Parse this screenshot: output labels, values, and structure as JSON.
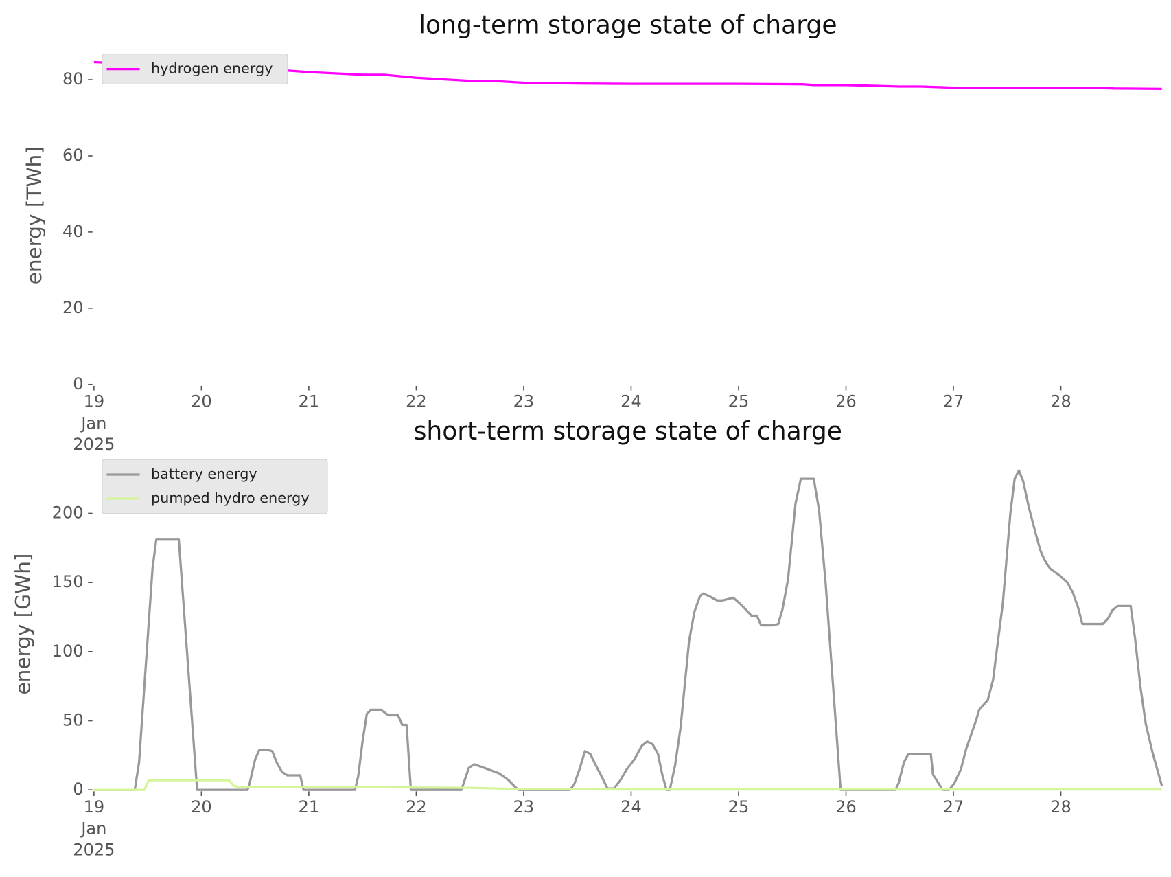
{
  "chart_data": [
    {
      "type": "line",
      "title": "long-term storage state of charge",
      "ylabel": "energy [TWh]",
      "xlim": [
        19,
        28.94
      ],
      "ylim": [
        0,
        88.7
      ],
      "yticks": [
        0,
        20,
        40,
        60,
        80
      ],
      "xticks": [
        {
          "value": 19,
          "label": "19\nJan\n2025"
        },
        20,
        21,
        22,
        23,
        24,
        25,
        26,
        27,
        28
      ],
      "legend": "upper left",
      "series": [
        {
          "name": "hydrogen energy",
          "color": "#ff00ff",
          "x": [
            19,
            19.5,
            20,
            20.5,
            21,
            21.5,
            21.7,
            22,
            22.5,
            22.7,
            23,
            23.5,
            24,
            25,
            25.6,
            25.7,
            26,
            26.5,
            26.7,
            27,
            28,
            28.3,
            28.5,
            28.94
          ],
          "values": [
            84.6,
            84.0,
            83.5,
            83.0,
            82.0,
            81.3,
            81.3,
            80.5,
            79.7,
            79.7,
            79.2,
            79.0,
            78.9,
            78.9,
            78.8,
            78.6,
            78.6,
            78.2,
            78.2,
            77.9,
            77.9,
            77.9,
            77.7,
            77.6
          ]
        }
      ]
    },
    {
      "type": "line",
      "title": "short-term storage state of charge",
      "ylabel": "energy [GWh]",
      "xlim": [
        19,
        28.94
      ],
      "ylim": [
        0,
        240
      ],
      "yticks": [
        0,
        50,
        100,
        150,
        200
      ],
      "xticks": [
        {
          "value": 19,
          "label": "19\nJan\n2025"
        },
        20,
        21,
        22,
        23,
        24,
        25,
        26,
        27,
        28
      ],
      "legend": "upper left",
      "series": [
        {
          "name": "battery energy",
          "color": "#999999",
          "x": [
            19,
            19.38,
            19.42,
            19.545,
            19.58,
            19.79,
            19.96,
            20.43,
            20.45,
            20.5,
            20.54,
            20.61,
            20.66,
            20.7,
            20.75,
            20.8,
            20.92,
            20.95,
            21.43,
            21.46,
            21.5,
            21.54,
            21.58,
            21.67,
            21.74,
            21.83,
            21.87,
            21.91,
            21.95,
            22.42,
            22.49,
            22.54,
            22.63,
            22.77,
            22.86,
            22.91,
            22.95,
            23.43,
            23.47,
            23.52,
            23.57,
            23.62,
            23.67,
            23.73,
            23.78,
            23.84,
            23.9,
            23.96,
            24.03,
            24.1,
            24.15,
            24.2,
            24.25,
            24.29,
            24.33,
            24.36,
            24.41,
            24.46,
            24.54,
            24.59,
            24.64,
            24.67,
            24.73,
            24.8,
            24.85,
            24.9,
            24.95,
            25.01,
            25.06,
            25.12,
            25.17,
            25.21,
            25.32,
            25.37,
            25.41,
            25.46,
            25.53,
            25.58,
            25.7,
            25.75,
            25.81,
            25.95,
            26.46,
            26.49,
            26.54,
            26.58,
            26.79,
            26.81,
            26.86,
            26.9,
            26.96,
            27.01,
            27.07,
            27.12,
            27.21,
            27.24,
            27.32,
            27.37,
            27.41,
            27.46,
            27.53,
            27.57,
            27.61,
            27.65,
            27.7,
            27.76,
            27.81,
            27.85,
            27.9,
            27.99,
            28.06,
            28.11,
            28.16,
            28.2,
            28.39,
            28.44,
            28.48,
            28.53,
            28.65,
            28.69,
            28.74,
            28.79,
            28.85,
            28.9,
            28.94
          ],
          "values": [
            0,
            0,
            20,
            160,
            181,
            181,
            0,
            0,
            5,
            22,
            29,
            29,
            28,
            20,
            13,
            10.5,
            10.5,
            0,
            0,
            10,
            35,
            55,
            58,
            58,
            54,
            54,
            47,
            47,
            0,
            0,
            16,
            18.5,
            16,
            12,
            7,
            3,
            0,
            0,
            4,
            15,
            28,
            26,
            18,
            9,
            1,
            1,
            7,
            15,
            22,
            32,
            35,
            33,
            26,
            11,
            0,
            0,
            18,
            45,
            108,
            129,
            140,
            142,
            140,
            137,
            137,
            138,
            139,
            135,
            131,
            126,
            126,
            119,
            119,
            120,
            131,
            152,
            207,
            225,
            225,
            202,
            150,
            0,
            0,
            5,
            20,
            26,
            26,
            11,
            5,
            0,
            0,
            5,
            15,
            30,
            50,
            58,
            65,
            80,
            105,
            135,
            200,
            225,
            231,
            223,
            205,
            187,
            173,
            166,
            160,
            155,
            150,
            143,
            132,
            120,
            120,
            124,
            130,
            133,
            133,
            110,
            75,
            48,
            28,
            14,
            3
          ]
        },
        {
          "name": "pumped hydro energy",
          "color": "#d6f59a",
          "x": [
            19,
            19.47,
            19.51,
            20.26,
            20.3,
            20.36,
            21.5,
            22.5,
            23,
            24,
            28.94
          ],
          "values": [
            0,
            0,
            7,
            7,
            3,
            2,
            2,
            1.5,
            0.5,
            0.3,
            0.3
          ]
        }
      ]
    }
  ]
}
